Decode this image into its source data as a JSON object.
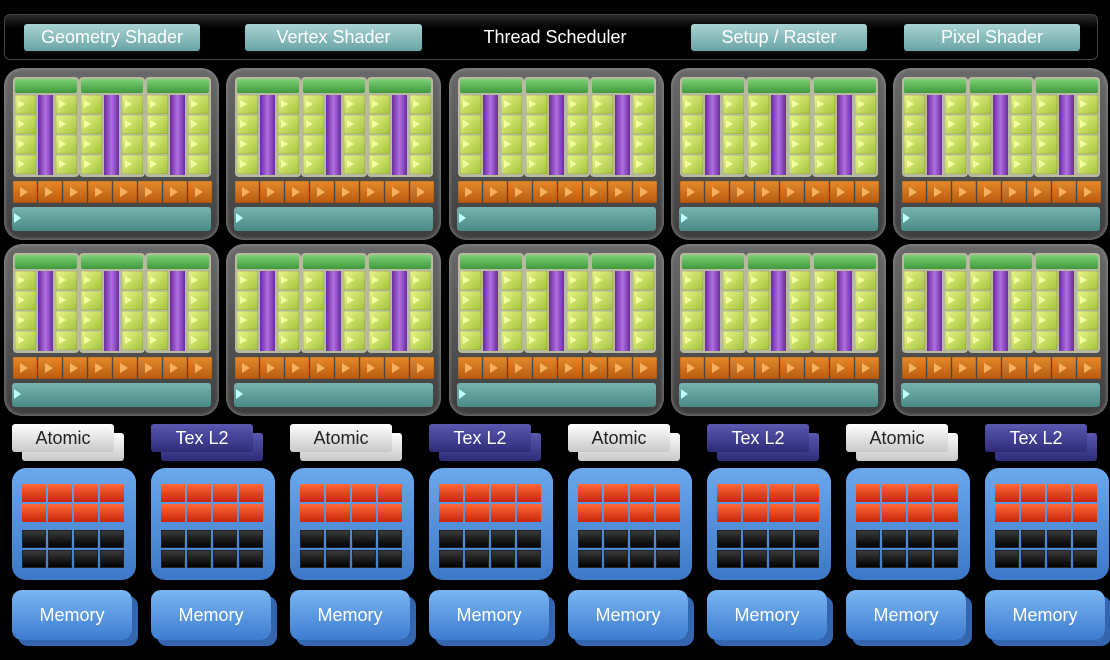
{
  "top_bar": {
    "geometry_shader": "Geometry Shader",
    "vertex_shader": "Vertex Shader",
    "thread_scheduler": "Thread Scheduler",
    "setup_raster": "Setup / Raster",
    "pixel_shader": "Pixel Shader"
  },
  "partitions": [
    {
      "label": "Atomic",
      "memory": "Memory"
    },
    {
      "label": "Tex L2",
      "memory": "Memory"
    },
    {
      "label": "Atomic",
      "memory": "Memory"
    },
    {
      "label": "Tex L2",
      "memory": "Memory"
    },
    {
      "label": "Atomic",
      "memory": "Memory"
    },
    {
      "label": "Tex L2",
      "memory": "Memory"
    },
    {
      "label": "Atomic",
      "memory": "Memory"
    },
    {
      "label": "Tex L2",
      "memory": "Memory"
    }
  ],
  "colors": {
    "background": "#000000",
    "shader_button": "#8bc0c1",
    "sm_core": "#c8e060",
    "sm_purple": "#9050c8",
    "texture_unit": "#d87420",
    "l1_bar": "#5e9d97",
    "atomic": "#e8e8e8",
    "tex_l2": "#3c3a8a",
    "rop_red": "#e83a18",
    "memory": "#4e8ee0"
  }
}
